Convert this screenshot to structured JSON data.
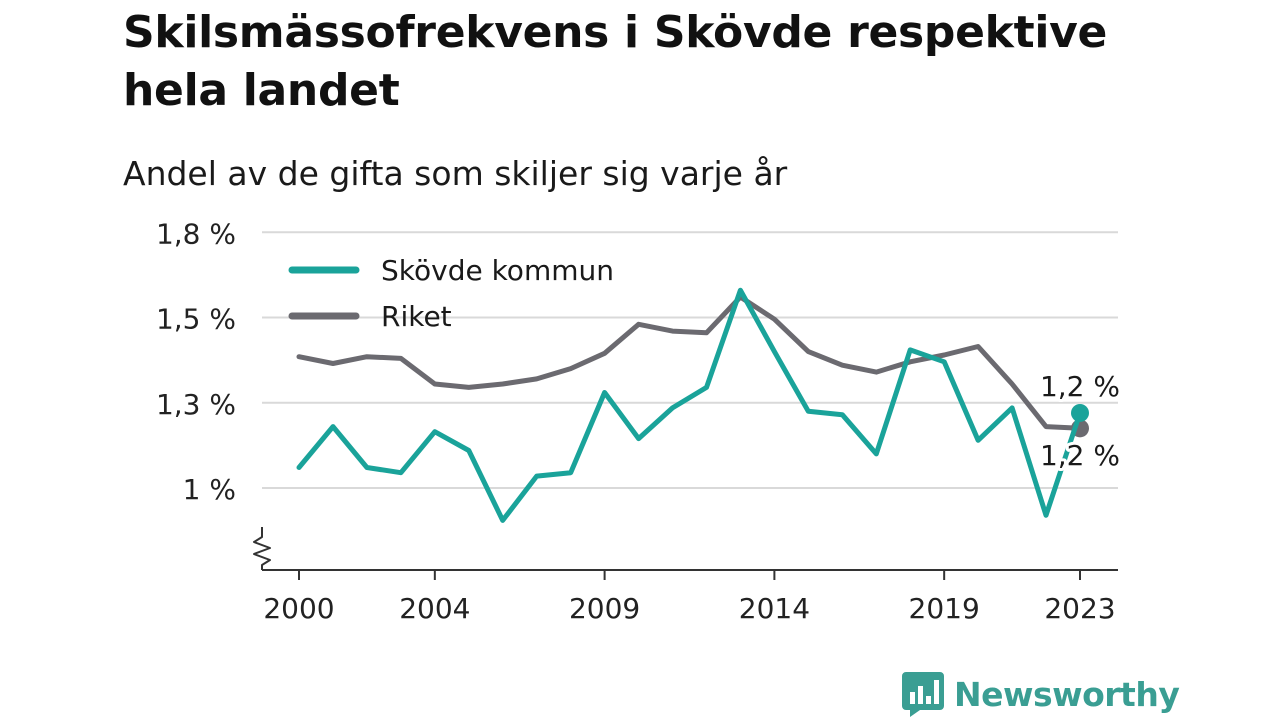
{
  "title": "Skilsmässofrekvens i Skövde respektive hela landet",
  "subtitle": "Andel av de gifta som skiljer sig varje år",
  "logo_text": "Newsworthy",
  "chart_data": {
    "type": "line",
    "title": "Skilsmässofrekvens i Skövde respektive hela landet",
    "subtitle": "Andel av de gifta som skiljer sig varje år",
    "xlabel": "",
    "ylabel": "",
    "x": [
      2000,
      2001,
      2002,
      2003,
      2004,
      2005,
      2006,
      2007,
      2008,
      2009,
      2010,
      2011,
      2012,
      2013,
      2014,
      2015,
      2016,
      2017,
      2018,
      2019,
      2020,
      2021,
      2022,
      2023
    ],
    "x_ticks": [
      2000,
      2004,
      2009,
      2014,
      2019,
      2023
    ],
    "x_tick_labels": [
      "2000",
      "2004",
      "2009",
      "2014",
      "2019",
      "2023"
    ],
    "ylim": [
      0.75,
      1.8
    ],
    "y_ticks": [
      1.0,
      1.25,
      1.5,
      1.75
    ],
    "y_tick_labels": [
      "1 %",
      "1,3 %",
      "1,5 %",
      "1,8 %"
    ],
    "grid": true,
    "axis_break": true,
    "legend_position": "top-left",
    "series": [
      {
        "name": "Skövde kommun",
        "color": "#1aa39a",
        "values": [
          1.06,
          1.18,
          1.06,
          1.045,
          1.165,
          1.11,
          0.905,
          1.035,
          1.045,
          1.28,
          1.145,
          1.235,
          1.295,
          1.58,
          1.4,
          1.225,
          1.215,
          1.1,
          1.405,
          1.37,
          1.14,
          1.235,
          0.92,
          1.22
        ],
        "end_label": "1,2 %"
      },
      {
        "name": "Riket",
        "color": "#6b6a70",
        "values": [
          1.385,
          1.365,
          1.385,
          1.38,
          1.305,
          1.295,
          1.305,
          1.32,
          1.35,
          1.395,
          1.48,
          1.46,
          1.455,
          1.56,
          1.495,
          1.4,
          1.36,
          1.34,
          1.37,
          1.39,
          1.415,
          1.305,
          1.18,
          1.175
        ],
        "end_label": "1,2 %"
      }
    ]
  }
}
